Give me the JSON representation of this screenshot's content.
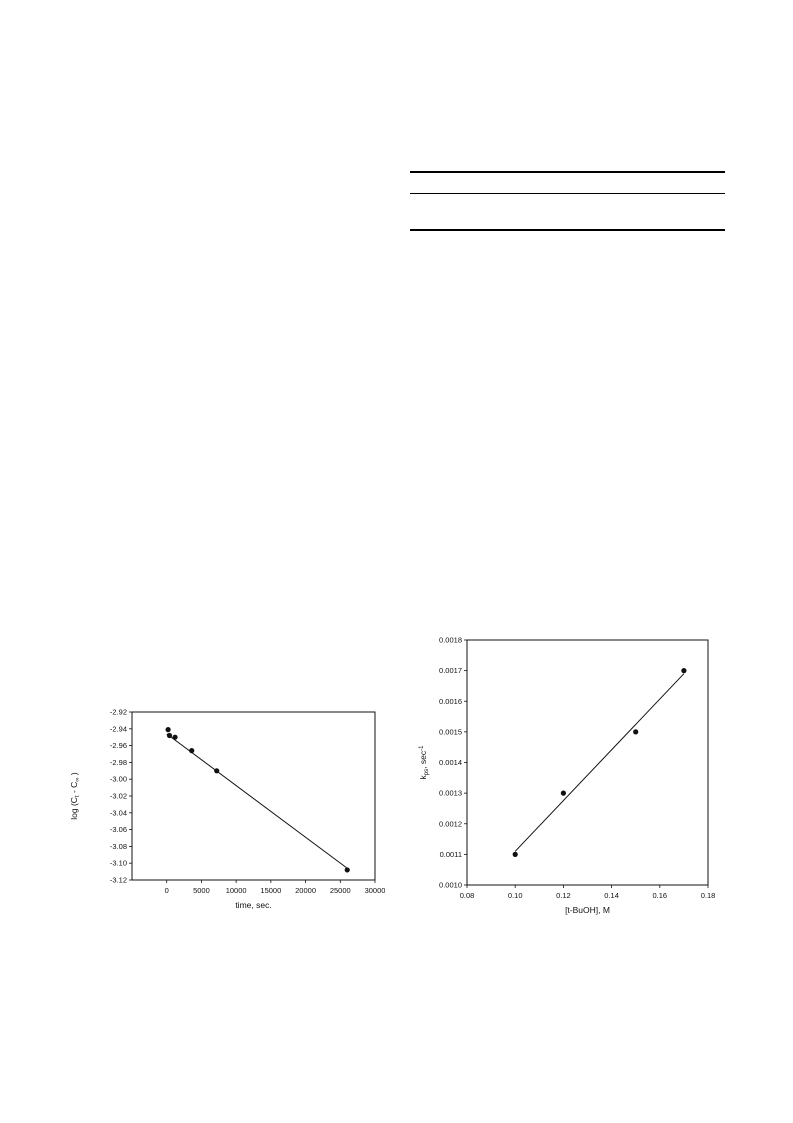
{
  "chart_data": [
    {
      "type": "scatter",
      "title": "",
      "xlabel": "time, sec.",
      "ylabel_main": "log (C",
      "ylabel_sub1": "t",
      "ylabel_mid": " - C",
      "ylabel_sub2": "∞",
      "ylabel_end": " )",
      "xlim": [
        -5000,
        30000
      ],
      "ylim": [
        -3.12,
        -2.92
      ],
      "xticks": [
        0,
        5000,
        10000,
        15000,
        20000,
        25000,
        30000
      ],
      "xtick_labels": [
        "0",
        "5000",
        "10000",
        "15000",
        "20000",
        "25000",
        "30000"
      ],
      "yticks": [
        -2.92,
        -2.94,
        -2.96,
        -2.98,
        -3.0,
        -3.02,
        -3.04,
        -3.06,
        -3.08,
        -3.1,
        -3.12
      ],
      "ytick_labels": [
        "-2.92",
        "-2.94",
        "-2.96",
        "-2.98",
        "-3.00",
        "-3.02",
        "-3.04",
        "-3.06",
        "-3.08",
        "-3.10",
        "-3.12"
      ],
      "points": [
        {
          "x": 200,
          "y": -2.941
        },
        {
          "x": 400,
          "y": -2.948
        },
        {
          "x": 1200,
          "y": -2.95
        },
        {
          "x": 3600,
          "y": -2.966
        },
        {
          "x": 7200,
          "y": -2.99
        },
        {
          "x": 26000,
          "y": -3.108
        }
      ],
      "fit_line": {
        "x": [
          0,
          26000
        ],
        "y": [
          -2.946,
          -3.106
        ]
      },
      "grid": false
    },
    {
      "type": "scatter",
      "title": "",
      "xlabel": "[t-BuOH], M",
      "ylabel_main": "k",
      "ylabel_sub1": "ps",
      "ylabel_mid": ", sec",
      "ylabel_sup": "-1",
      "xlim": [
        0.08,
        0.18
      ],
      "ylim": [
        0.001,
        0.0018
      ],
      "xticks": [
        0.08,
        0.1,
        0.12,
        0.14,
        0.16,
        0.18
      ],
      "xtick_labels": [
        "0.08",
        "0.10",
        "0.12",
        "0.14",
        "0.16",
        "0.18"
      ],
      "yticks": [
        0.001,
        0.0011,
        0.0012,
        0.0013,
        0.0014,
        0.0015,
        0.0016,
        0.0017,
        0.0018
      ],
      "ytick_labels": [
        "0.0010",
        "0.0011",
        "0.0012",
        "0.0013",
        "0.0014",
        "0.0015",
        "0.0016",
        "0.0017",
        "0.0018"
      ],
      "points": [
        {
          "x": 0.1,
          "y": 0.0011
        },
        {
          "x": 0.12,
          "y": 0.0013
        },
        {
          "x": 0.15,
          "y": 0.0015
        },
        {
          "x": 0.17,
          "y": 0.0017
        }
      ],
      "fit_line": {
        "x": [
          0.1,
          0.17
        ],
        "y": [
          0.00111,
          0.00169
        ]
      },
      "grid": false
    }
  ]
}
